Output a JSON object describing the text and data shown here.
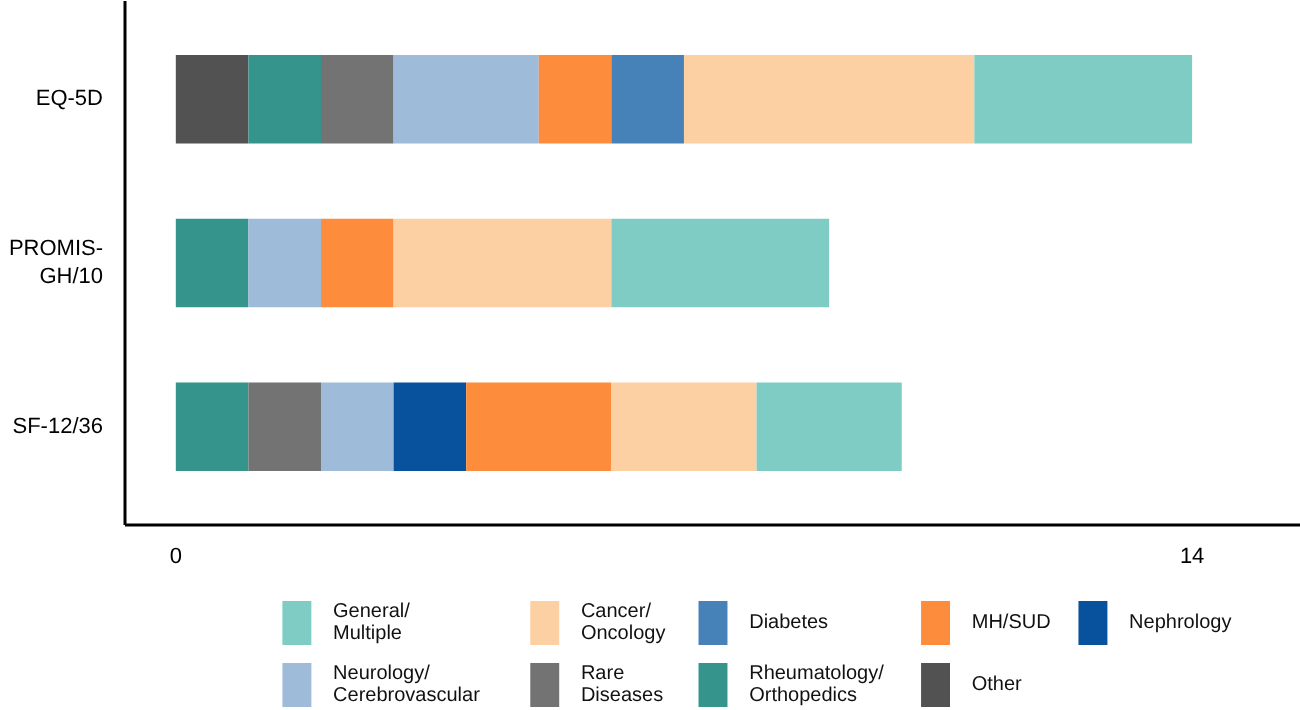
{
  "chart_data": {
    "type": "bar",
    "orientation": "horizontal",
    "stacked": true,
    "categories": [
      "EQ-5D",
      "PROMIS-GH/10",
      "SF-12/36"
    ],
    "series": [
      {
        "name": "Other",
        "color": "#525252",
        "values": [
          1,
          null,
          null
        ]
      },
      {
        "name": "Rheumatology/Orthopedics",
        "color": "#35958d",
        "values": [
          1,
          1,
          1
        ]
      },
      {
        "name": "Rare Diseases",
        "color": "#737373",
        "values": [
          1,
          null,
          1
        ]
      },
      {
        "name": "Neurology/Cerebrovascular",
        "color": "#9ebbd9",
        "values": [
          2,
          1,
          1
        ]
      },
      {
        "name": "Nephrology",
        "color": "#08519c",
        "values": [
          null,
          null,
          1
        ]
      },
      {
        "name": "MH/SUD",
        "color": "#fd8d3c",
        "values": [
          1,
          1,
          2
        ]
      },
      {
        "name": "Diabetes",
        "color": "#4682b8",
        "values": [
          1,
          null,
          null
        ]
      },
      {
        "name": "Cancer/Oncology",
        "color": "#fcd0a2",
        "values": [
          4,
          3,
          2
        ]
      },
      {
        "name": "General/Multiple",
        "color": "#7fccc4",
        "values": [
          3,
          3,
          2
        ]
      }
    ],
    "xlim": [
      -0.7,
      15.5
    ],
    "xticks": [
      0,
      14
    ],
    "grid": false,
    "legend": "bottom"
  }
}
